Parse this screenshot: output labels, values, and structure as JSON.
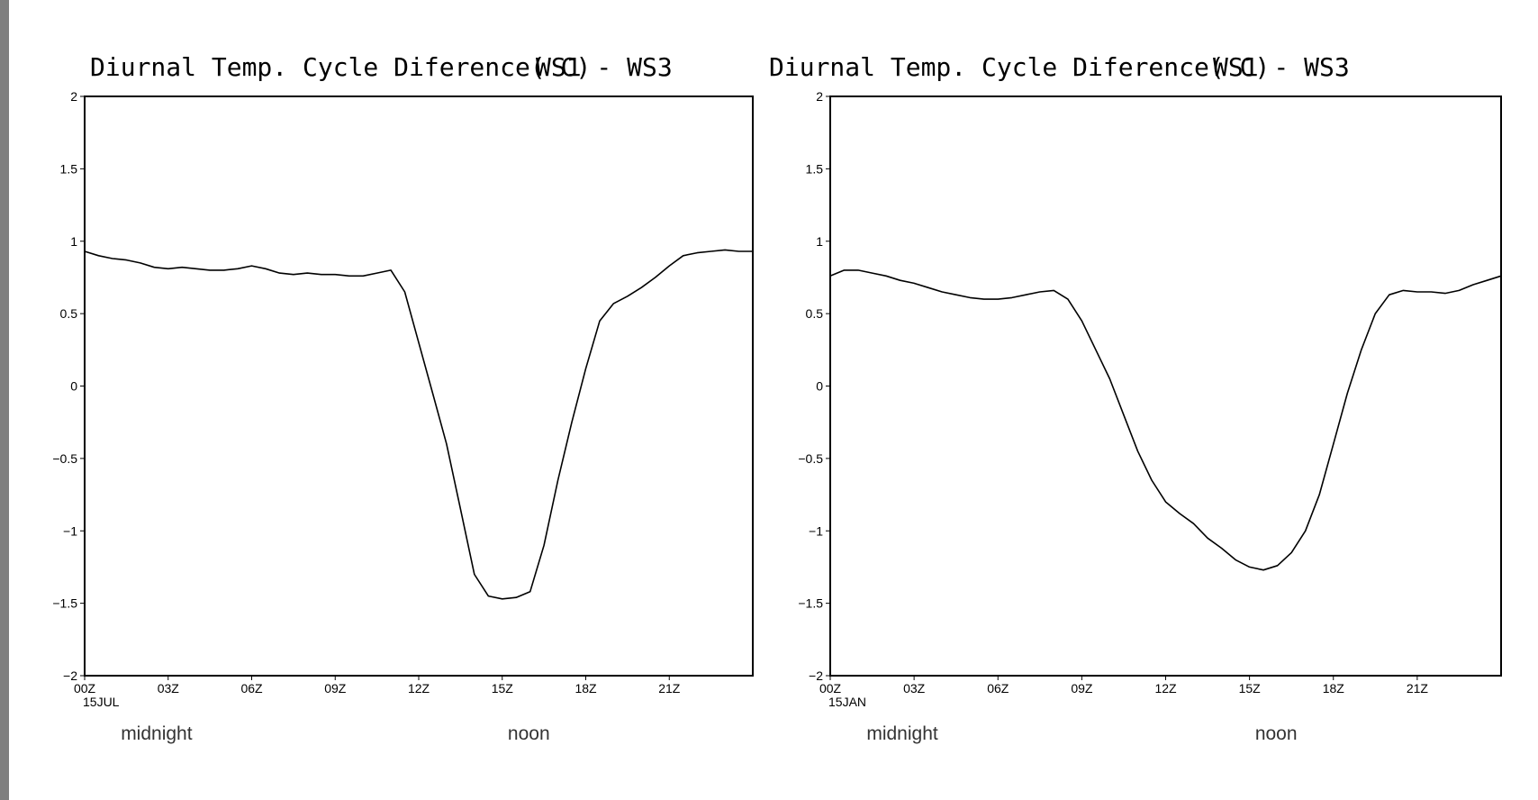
{
  "chart_data": [
    {
      "type": "line",
      "title": "Diurnal Temp. Cycle Diference( C)",
      "title_right": "WS1  -  WS3",
      "xlabel": "",
      "ylabel": "",
      "xlim": [
        0,
        24
      ],
      "ylim": [
        -2,
        2
      ],
      "y_ticks": [
        2,
        1.5,
        1,
        0.5,
        0,
        -0.5,
        -1,
        -1.5,
        -2
      ],
      "y_tick_labels": [
        "2",
        "1.5",
        "1",
        "0.5",
        "0",
        "−0.5",
        "−1",
        "−1.5",
        "−2"
      ],
      "x_ticks": [
        0,
        3,
        6,
        9,
        12,
        15,
        18,
        21
      ],
      "x_tick_labels": [
        "00Z",
        "03Z",
        "06Z",
        "09Z",
        "12Z",
        "15Z",
        "18Z",
        "21Z"
      ],
      "date_label": "15JUL",
      "annotations": [
        {
          "text": "midnight",
          "x": 1.3
        },
        {
          "text": "noon",
          "x": 15.2
        }
      ],
      "grid": false,
      "line_color": "#000000",
      "series": [
        {
          "x": [
            0,
            0.5,
            1,
            1.5,
            2,
            2.5,
            3,
            3.5,
            4,
            4.5,
            5,
            5.5,
            6,
            6.5,
            7,
            7.5,
            8,
            8.5,
            9,
            9.5,
            10,
            10.5,
            11,
            11.5,
            12,
            12.5,
            13,
            13.5,
            14,
            14.5,
            15,
            15.5,
            16,
            16.5,
            17,
            17.5,
            18,
            18.5,
            19,
            19.5,
            20,
            20.5,
            21,
            21.5,
            22,
            22.5,
            23,
            23.5,
            24
          ],
          "values": [
            0.93,
            0.9,
            0.88,
            0.87,
            0.85,
            0.82,
            0.81,
            0.82,
            0.81,
            0.8,
            0.8,
            0.81,
            0.83,
            0.81,
            0.78,
            0.77,
            0.78,
            0.77,
            0.77,
            0.76,
            0.76,
            0.78,
            0.8,
            0.65,
            0.3,
            -0.05,
            -0.4,
            -0.85,
            -1.3,
            -1.45,
            -1.47,
            -1.46,
            -1.42,
            -1.1,
            -0.65,
            -0.25,
            0.12,
            0.45,
            0.57,
            0.62,
            0.68,
            0.75,
            0.83,
            0.9,
            0.92,
            0.93,
            0.94,
            0.93,
            0.93
          ]
        }
      ]
    },
    {
      "type": "line",
      "title": "Diurnal Temp. Cycle Diference( C)",
      "title_right": "WS1  -  WS3",
      "xlabel": "",
      "ylabel": "",
      "xlim": [
        0,
        24
      ],
      "ylim": [
        -2,
        2
      ],
      "y_ticks": [
        2,
        1.5,
        1,
        0.5,
        0,
        -0.5,
        -1,
        -1.5,
        -2
      ],
      "y_tick_labels": [
        "2",
        "1.5",
        "1",
        "0.5",
        "0",
        "−0.5",
        "−1",
        "−1.5",
        "−2"
      ],
      "x_ticks": [
        0,
        3,
        6,
        9,
        12,
        15,
        18,
        21
      ],
      "x_tick_labels": [
        "00Z",
        "03Z",
        "06Z",
        "09Z",
        "12Z",
        "15Z",
        "18Z",
        "21Z"
      ],
      "date_label": "15JAN",
      "annotations": [
        {
          "text": "midnight",
          "x": 1.3
        },
        {
          "text": "noon",
          "x": 15.2
        }
      ],
      "grid": false,
      "line_color": "#000000",
      "series": [
        {
          "x": [
            0,
            0.5,
            1,
            1.5,
            2,
            2.5,
            3,
            3.5,
            4,
            4.5,
            5,
            5.5,
            6,
            6.5,
            7,
            7.5,
            8,
            8.5,
            9,
            9.5,
            10,
            10.5,
            11,
            11.5,
            12,
            12.5,
            13,
            13.5,
            14,
            14.5,
            15,
            15.5,
            16,
            16.5,
            17,
            17.5,
            18,
            18.5,
            19,
            19.5,
            20,
            20.5,
            21,
            21.5,
            22,
            22.5,
            23,
            23.5,
            24
          ],
          "values": [
            0.76,
            0.8,
            0.8,
            0.78,
            0.76,
            0.73,
            0.71,
            0.68,
            0.65,
            0.63,
            0.61,
            0.6,
            0.6,
            0.61,
            0.63,
            0.65,
            0.66,
            0.6,
            0.45,
            0.25,
            0.05,
            -0.2,
            -0.45,
            -0.65,
            -0.8,
            -0.88,
            -0.95,
            -1.05,
            -1.12,
            -1.2,
            -1.25,
            -1.27,
            -1.24,
            -1.15,
            -1.0,
            -0.75,
            -0.4,
            -0.05,
            0.25,
            0.5,
            0.63,
            0.66,
            0.65,
            0.65,
            0.64,
            0.66,
            0.7,
            0.73,
            0.76
          ]
        }
      ]
    }
  ]
}
